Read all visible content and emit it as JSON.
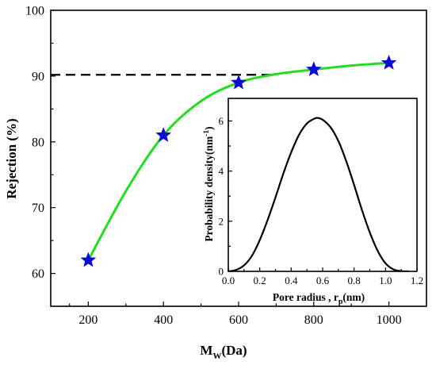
{
  "chart_data": [
    {
      "type": "line",
      "xlabel": "M",
      "xlabel_sub": "W",
      "xlabel_suffix": "(Da)",
      "ylabel": "Rejection (%)",
      "xlim": [
        100,
        1100
      ],
      "ylim": [
        55,
        100
      ],
      "x_ticks": [
        200,
        400,
        600,
        800,
        1000
      ],
      "y_ticks": [
        60,
        70,
        80,
        90,
        100
      ],
      "grid": false,
      "series": [
        {
          "type": "scatter",
          "marker": "star",
          "color": "#0a0ad6",
          "x": [
            200,
            400,
            600,
            800,
            1000
          ],
          "y": [
            62,
            81,
            89,
            91,
            92
          ]
        },
        {
          "type": "line",
          "color": "#22dd22",
          "x": [
            200,
            300,
            400,
            500,
            600,
            700,
            800,
            900,
            1000
          ],
          "y": [
            62,
            72.5,
            81,
            86.2,
            89,
            90.3,
            91,
            91.6,
            92
          ]
        },
        {
          "type": "reference-line",
          "style": "dashed",
          "color": "#000000",
          "x": [
            100,
            700
          ],
          "y": [
            90.2,
            90.2
          ]
        }
      ]
    },
    {
      "type": "line",
      "xlabel": "Pore radius , r",
      "xlabel_sub": "p",
      "xlabel_suffix": "(nm)",
      "ylabel": "Probability density(nm",
      "ylabel_sup": "-1",
      "ylabel_suffix": ")",
      "xlim": [
        0,
        1.2
      ],
      "ylim": [
        0,
        6.9
      ],
      "x_ticks": [
        "0.0",
        "0.2",
        "0.4",
        "0.6",
        "0.8",
        "1.0",
        "1.2"
      ],
      "y_ticks": [
        "0",
        "2",
        "4",
        "6"
      ],
      "grid": false,
      "series": [
        {
          "type": "line",
          "color": "#000000",
          "x": [
            0.0,
            0.05,
            0.1,
            0.15,
            0.2,
            0.25,
            0.3,
            0.35,
            0.4,
            0.45,
            0.5,
            0.55,
            0.57,
            0.6,
            0.65,
            0.7,
            0.75,
            0.8,
            0.85,
            0.9,
            0.95,
            1.0,
            1.05,
            1.1,
            1.15
          ],
          "y": [
            0.0,
            0.06,
            0.24,
            0.62,
            1.25,
            2.05,
            2.95,
            3.9,
            4.75,
            5.45,
            5.9,
            6.1,
            6.12,
            6.05,
            5.75,
            5.2,
            4.4,
            3.45,
            2.45,
            1.55,
            0.82,
            0.32,
            0.08,
            0.01,
            0.0
          ]
        }
      ]
    }
  ]
}
